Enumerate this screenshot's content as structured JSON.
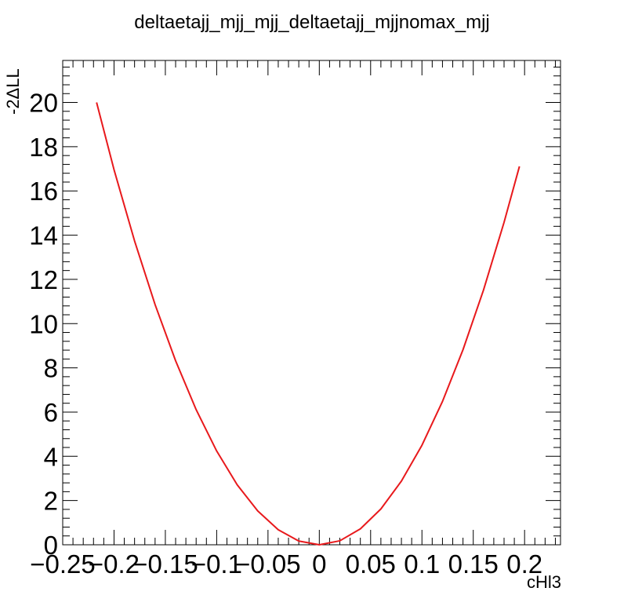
{
  "chart_data": {
    "type": "line",
    "title": "deltaetajj_mjj_mjj_deltaetajj_mjjnomax_mjj",
    "xlabel": "cHl3",
    "ylabel": "-2ΔLL",
    "xlim": [
      -0.25,
      0.235
    ],
    "ylim": [
      0,
      21.9
    ],
    "x_ticks": [
      -0.25,
      -0.2,
      -0.15,
      -0.1,
      -0.05,
      0,
      0.05,
      0.1,
      0.15,
      0.2
    ],
    "x_tick_labels": [
      "−0.25",
      "−0.2",
      "−0.15",
      "−0.1",
      "−0.05",
      "0",
      "0.05",
      "0.1",
      "0.15",
      "0.2"
    ],
    "y_ticks": [
      0,
      2,
      4,
      6,
      8,
      10,
      12,
      14,
      16,
      18,
      20
    ],
    "y_tick_labels": [
      "0",
      "2",
      "4",
      "6",
      "8",
      "10",
      "12",
      "14",
      "16",
      "18",
      "20"
    ],
    "grid": false,
    "series": [
      {
        "color": "#e8191c",
        "x": [
          -0.217,
          -0.2,
          -0.18,
          -0.16,
          -0.14,
          -0.12,
          -0.1,
          -0.08,
          -0.06,
          -0.04,
          -0.02,
          0,
          0.02,
          0.04,
          0.06,
          0.08,
          0.1,
          0.12,
          0.14,
          0.16,
          0.18,
          0.195
        ],
        "y": [
          20.0,
          16.96,
          13.74,
          10.86,
          8.32,
          6.11,
          4.24,
          2.71,
          1.53,
          0.68,
          0.17,
          0.0,
          0.18,
          0.72,
          1.62,
          2.88,
          4.5,
          6.48,
          8.82,
          11.52,
          14.58,
          17.11
        ]
      }
    ]
  }
}
